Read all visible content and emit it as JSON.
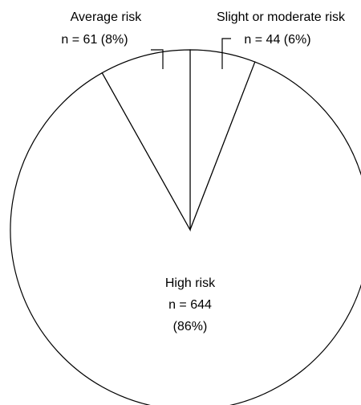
{
  "chart_data": {
    "type": "pie",
    "title": "",
    "colors": {
      "fill": "#ffffff",
      "stroke": "#000000",
      "text": "#000000"
    },
    "slices": [
      {
        "label": "High risk",
        "n_text": "n = 644",
        "pct_text": "(86%)",
        "n": 644,
        "percent": 86
      },
      {
        "label": "Average risk",
        "n_text": "n = 61 (8%)",
        "n": 61,
        "percent": 8
      },
      {
        "label": "Slight or moderate risk",
        "n_text": "n = 44 (6%)",
        "n": 44,
        "percent": 6
      }
    ]
  }
}
